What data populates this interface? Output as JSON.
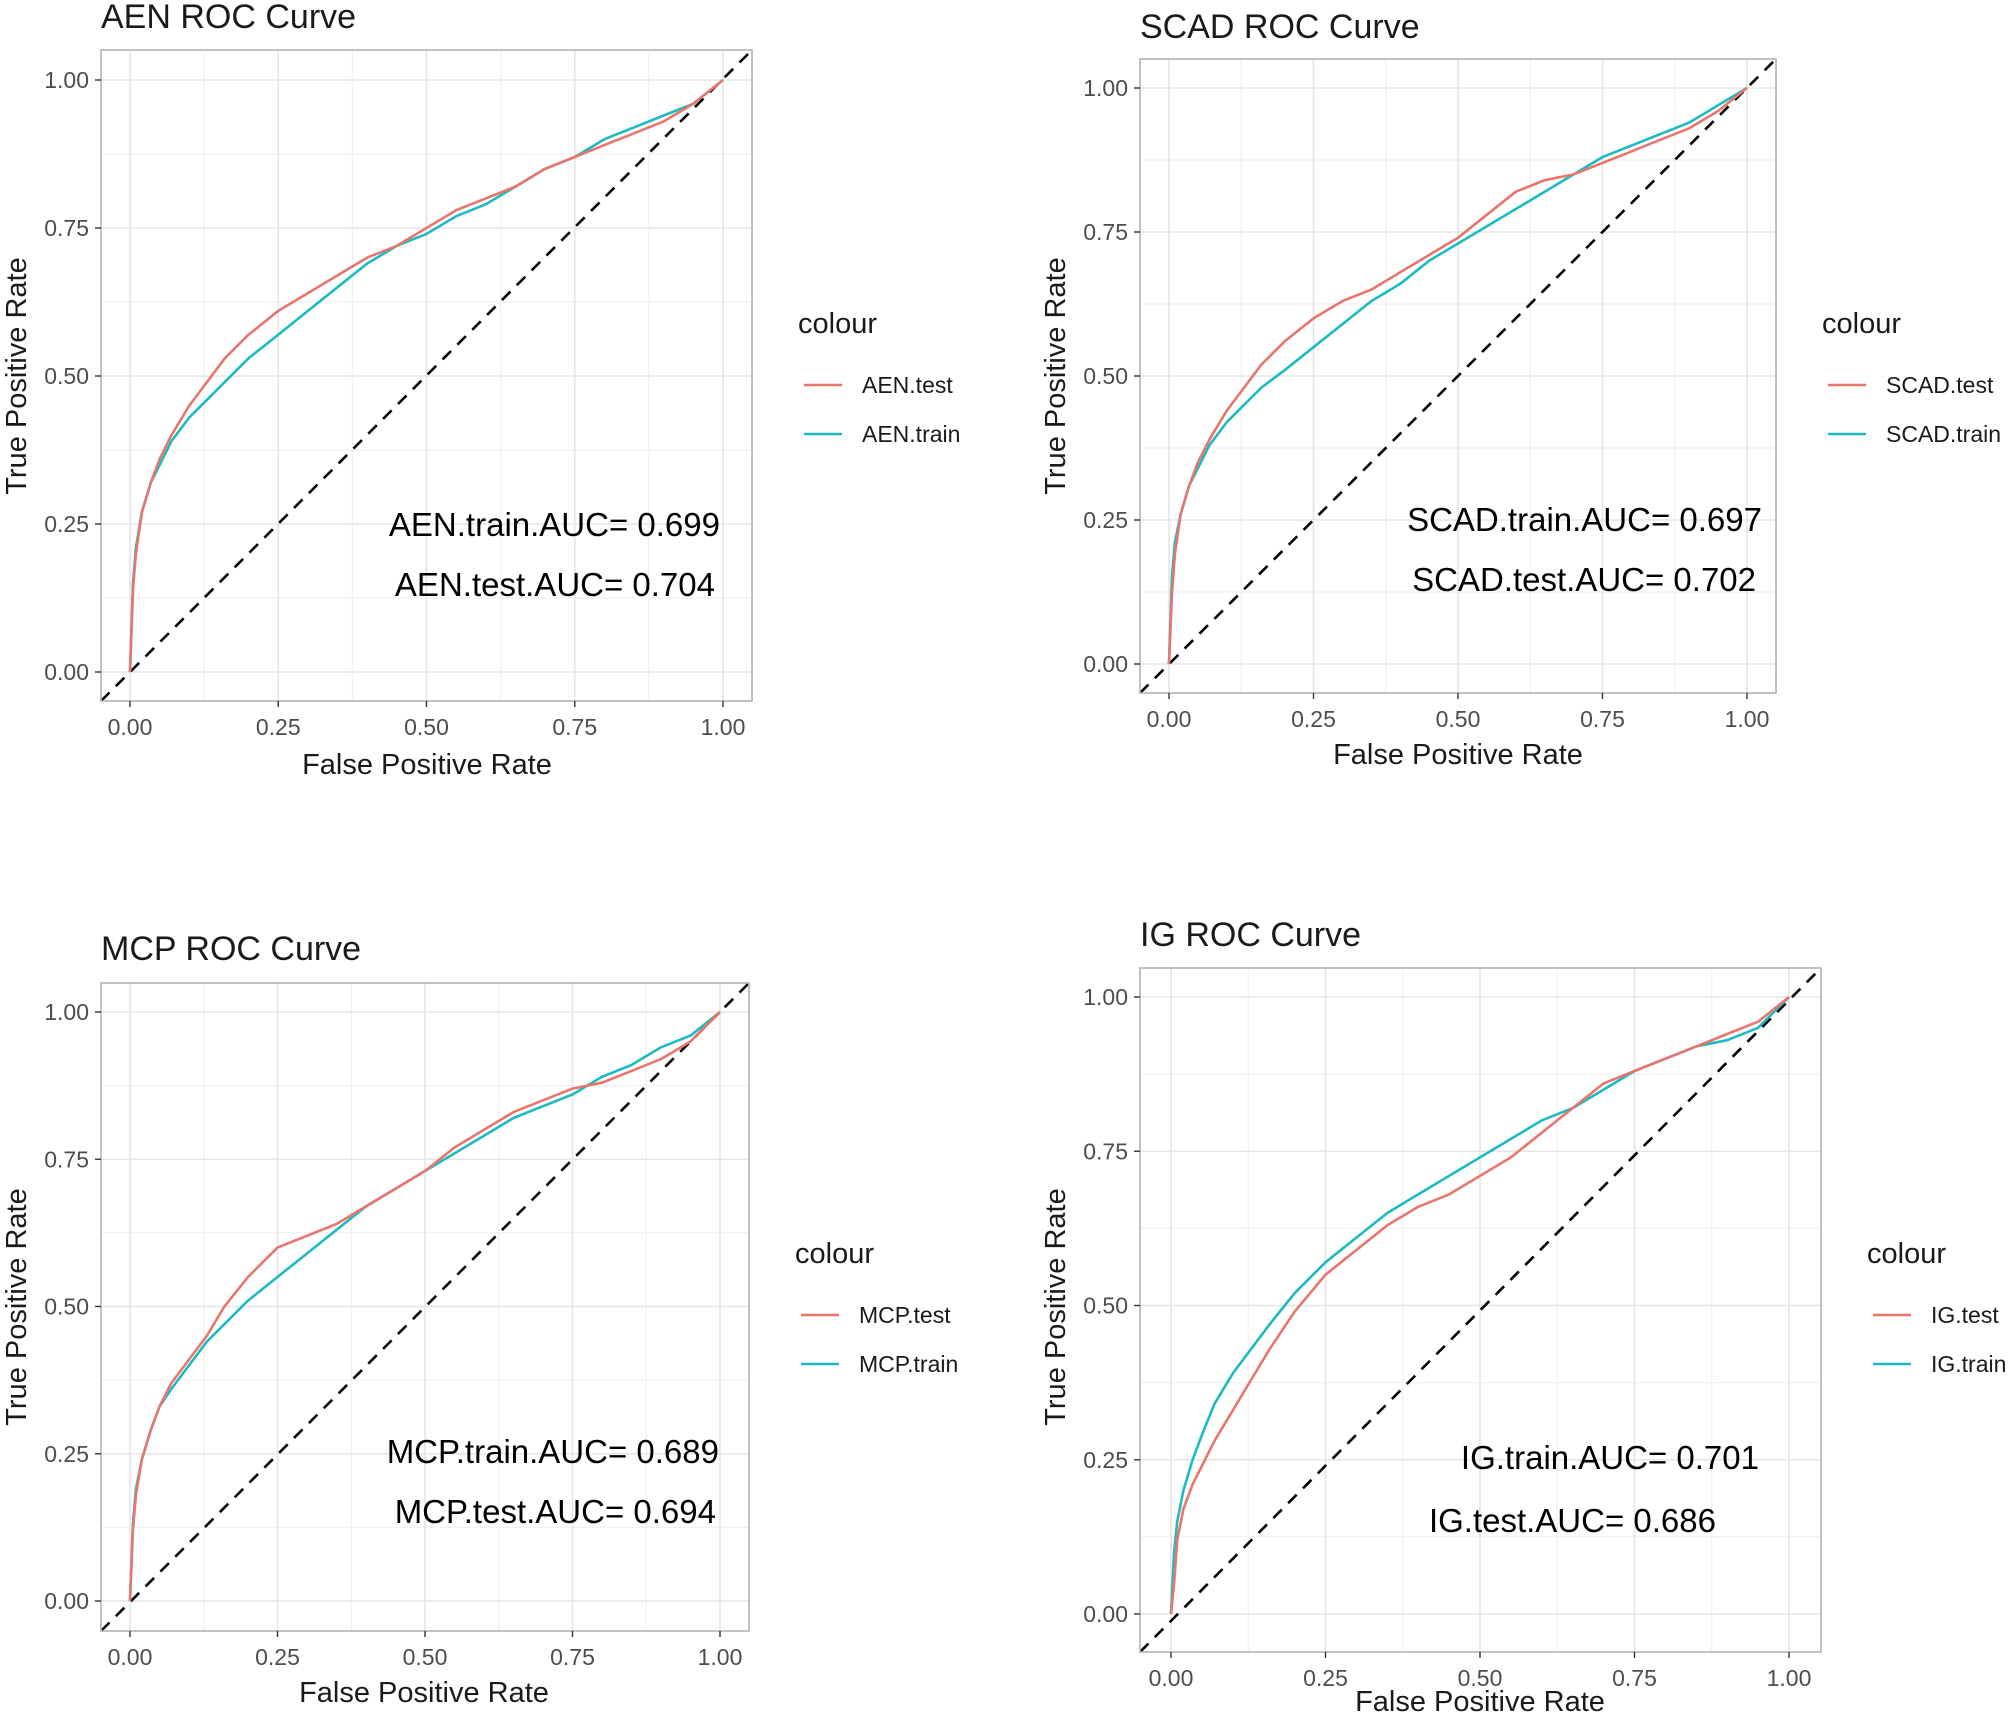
{
  "colors": {
    "test": "#E8766D",
    "train": "#1DBBC1",
    "grid": "#E5E5E5",
    "panel_border": "#B3B3B3",
    "diagonal": "#000000",
    "text": "#1A1A1A",
    "tick_text": "#4D4D4D"
  },
  "chart_data": [
    {
      "type": "line",
      "title": "AEN ROC Curve",
      "xlabel": "False Positive Rate",
      "ylabel": "True Positive Rate",
      "xlim": [
        0,
        1
      ],
      "ylim": [
        0,
        1
      ],
      "xticks": [
        "0.00",
        "0.25",
        "0.50",
        "0.75",
        "1.00"
      ],
      "yticks": [
        "0.00",
        "0.25",
        "0.50",
        "0.75",
        "1.00"
      ],
      "grid": true,
      "legend": {
        "title": "colour",
        "position": "right",
        "entries": [
          "AEN.test",
          "AEN.train"
        ]
      },
      "annotations": [
        "AEN.train.AUC= 0.699",
        "AEN.test.AUC= 0.704"
      ],
      "diagonal": {
        "style": "dashed",
        "from": [
          0,
          0
        ],
        "to": [
          1,
          1
        ]
      },
      "series": [
        {
          "name": "AEN.test",
          "color_key": "test",
          "x": [
            0,
            0.005,
            0.01,
            0.02,
            0.035,
            0.05,
            0.07,
            0.1,
            0.13,
            0.16,
            0.2,
            0.25,
            0.3,
            0.35,
            0.4,
            0.45,
            0.5,
            0.55,
            0.6,
            0.65,
            0.7,
            0.75,
            0.8,
            0.85,
            0.9,
            0.95,
            1.0
          ],
          "y": [
            0,
            0.14,
            0.2,
            0.27,
            0.32,
            0.36,
            0.4,
            0.45,
            0.49,
            0.53,
            0.57,
            0.61,
            0.64,
            0.67,
            0.7,
            0.72,
            0.75,
            0.78,
            0.8,
            0.82,
            0.85,
            0.87,
            0.89,
            0.91,
            0.93,
            0.96,
            1.0
          ]
        },
        {
          "name": "AEN.train",
          "color_key": "train",
          "x": [
            0,
            0.005,
            0.01,
            0.02,
            0.035,
            0.05,
            0.07,
            0.1,
            0.13,
            0.16,
            0.2,
            0.25,
            0.3,
            0.35,
            0.4,
            0.45,
            0.5,
            0.55,
            0.6,
            0.65,
            0.7,
            0.75,
            0.8,
            0.85,
            0.9,
            0.95,
            1.0
          ],
          "y": [
            0,
            0.15,
            0.21,
            0.27,
            0.32,
            0.35,
            0.39,
            0.43,
            0.46,
            0.49,
            0.53,
            0.57,
            0.61,
            0.65,
            0.69,
            0.72,
            0.74,
            0.77,
            0.79,
            0.82,
            0.85,
            0.87,
            0.9,
            0.92,
            0.94,
            0.96,
            1.0
          ]
        }
      ]
    },
    {
      "type": "line",
      "title": "SCAD ROC Curve",
      "xlabel": "False Positive Rate",
      "ylabel": "True Positive Rate",
      "xlim": [
        0,
        1
      ],
      "ylim": [
        0,
        1
      ],
      "xticks": [
        "0.00",
        "0.25",
        "0.50",
        "0.75",
        "1.00"
      ],
      "yticks": [
        "0.00",
        "0.25",
        "0.50",
        "0.75",
        "1.00"
      ],
      "grid": true,
      "legend": {
        "title": "colour",
        "position": "right",
        "entries": [
          "SCAD.test",
          "SCAD.train"
        ]
      },
      "annotations": [
        "SCAD.train.AUC= 0.697",
        "SCAD.test.AUC= 0.702"
      ],
      "diagonal": {
        "style": "dashed",
        "from": [
          0,
          0
        ],
        "to": [
          1,
          1
        ]
      },
      "series": [
        {
          "name": "SCAD.test",
          "color_key": "test",
          "x": [
            0,
            0.005,
            0.01,
            0.02,
            0.035,
            0.05,
            0.07,
            0.1,
            0.13,
            0.16,
            0.2,
            0.25,
            0.3,
            0.35,
            0.4,
            0.45,
            0.5,
            0.55,
            0.6,
            0.65,
            0.7,
            0.75,
            0.8,
            0.85,
            0.9,
            0.95,
            1.0
          ],
          "y": [
            0,
            0.12,
            0.19,
            0.26,
            0.31,
            0.35,
            0.39,
            0.44,
            0.48,
            0.52,
            0.56,
            0.6,
            0.63,
            0.65,
            0.68,
            0.71,
            0.74,
            0.78,
            0.82,
            0.84,
            0.85,
            0.87,
            0.89,
            0.91,
            0.93,
            0.96,
            1.0
          ]
        },
        {
          "name": "SCAD.train",
          "color_key": "train",
          "x": [
            0,
            0.005,
            0.01,
            0.02,
            0.035,
            0.05,
            0.07,
            0.1,
            0.13,
            0.16,
            0.2,
            0.25,
            0.3,
            0.35,
            0.4,
            0.45,
            0.5,
            0.55,
            0.6,
            0.65,
            0.7,
            0.75,
            0.8,
            0.85,
            0.9,
            0.95,
            1.0
          ],
          "y": [
            0,
            0.15,
            0.21,
            0.26,
            0.31,
            0.34,
            0.38,
            0.42,
            0.45,
            0.48,
            0.51,
            0.55,
            0.59,
            0.63,
            0.66,
            0.7,
            0.73,
            0.76,
            0.79,
            0.82,
            0.85,
            0.88,
            0.9,
            0.92,
            0.94,
            0.97,
            1.0
          ]
        }
      ]
    },
    {
      "type": "line",
      "title": "MCP ROC Curve",
      "xlabel": "False Positive Rate",
      "ylabel": "True Positive Rate",
      "xlim": [
        0,
        1
      ],
      "ylim": [
        0,
        1
      ],
      "xticks": [
        "0.00",
        "0.25",
        "0.50",
        "0.75",
        "1.00"
      ],
      "yticks": [
        "0.00",
        "0.25",
        "0.50",
        "0.75",
        "1.00"
      ],
      "grid": true,
      "legend": {
        "title": "colour",
        "position": "right",
        "entries": [
          "MCP.test",
          "MCP.train"
        ]
      },
      "annotations": [
        "MCP.train.AUC= 0.689",
        "MCP.test.AUC= 0.694"
      ],
      "diagonal": {
        "style": "dashed",
        "from": [
          0,
          0
        ],
        "to": [
          1,
          1
        ]
      },
      "series": [
        {
          "name": "MCP.test",
          "color_key": "test",
          "x": [
            0,
            0.005,
            0.01,
            0.02,
            0.035,
            0.05,
            0.07,
            0.1,
            0.13,
            0.16,
            0.2,
            0.25,
            0.3,
            0.35,
            0.4,
            0.45,
            0.5,
            0.55,
            0.6,
            0.65,
            0.7,
            0.75,
            0.8,
            0.85,
            0.9,
            0.95,
            1.0
          ],
          "y": [
            0,
            0.12,
            0.18,
            0.24,
            0.29,
            0.33,
            0.37,
            0.41,
            0.45,
            0.5,
            0.55,
            0.6,
            0.62,
            0.64,
            0.67,
            0.7,
            0.73,
            0.77,
            0.8,
            0.83,
            0.85,
            0.87,
            0.88,
            0.9,
            0.92,
            0.95,
            1.0
          ]
        },
        {
          "name": "MCP.train",
          "color_key": "train",
          "x": [
            0,
            0.005,
            0.01,
            0.02,
            0.035,
            0.05,
            0.07,
            0.1,
            0.13,
            0.16,
            0.2,
            0.25,
            0.3,
            0.35,
            0.4,
            0.45,
            0.5,
            0.55,
            0.6,
            0.65,
            0.7,
            0.75,
            0.8,
            0.85,
            0.9,
            0.95,
            1.0
          ],
          "y": [
            0,
            0.13,
            0.19,
            0.24,
            0.29,
            0.33,
            0.36,
            0.4,
            0.44,
            0.47,
            0.51,
            0.55,
            0.59,
            0.63,
            0.67,
            0.7,
            0.73,
            0.76,
            0.79,
            0.82,
            0.84,
            0.86,
            0.89,
            0.91,
            0.94,
            0.96,
            1.0
          ]
        }
      ]
    },
    {
      "type": "line",
      "title": "IG ROC Curve",
      "xlabel": "False Positive Rate",
      "ylabel": "True Positive Rate",
      "xlim": [
        0,
        1
      ],
      "ylim": [
        0,
        1
      ],
      "xticks": [
        "0.00",
        "0.25",
        "0.50",
        "0.75",
        "1.00"
      ],
      "yticks": [
        "0.00",
        "0.25",
        "0.50",
        "0.75",
        "1.00"
      ],
      "grid": true,
      "legend": {
        "title": "colour",
        "position": "right",
        "entries": [
          "IG.test",
          "IG.train"
        ]
      },
      "annotations": [
        "IG.train.AUC= 0.701",
        "IG.test.AUC= 0.686"
      ],
      "diagonal": {
        "style": "dashed",
        "from": [
          0,
          0
        ],
        "to": [
          1,
          1
        ]
      },
      "series": [
        {
          "name": "IG.test",
          "color_key": "test",
          "x": [
            0,
            0.005,
            0.01,
            0.02,
            0.035,
            0.05,
            0.07,
            0.1,
            0.13,
            0.16,
            0.2,
            0.25,
            0.3,
            0.35,
            0.4,
            0.45,
            0.5,
            0.55,
            0.6,
            0.65,
            0.7,
            0.75,
            0.8,
            0.85,
            0.9,
            0.95,
            1.0
          ],
          "y": [
            0,
            0.05,
            0.12,
            0.17,
            0.21,
            0.24,
            0.28,
            0.33,
            0.38,
            0.43,
            0.49,
            0.55,
            0.59,
            0.63,
            0.66,
            0.68,
            0.71,
            0.74,
            0.78,
            0.82,
            0.86,
            0.88,
            0.9,
            0.92,
            0.94,
            0.96,
            1.0
          ]
        },
        {
          "name": "IG.train",
          "color_key": "train",
          "x": [
            0,
            0.005,
            0.01,
            0.02,
            0.035,
            0.05,
            0.07,
            0.1,
            0.13,
            0.16,
            0.2,
            0.25,
            0.3,
            0.35,
            0.4,
            0.45,
            0.5,
            0.55,
            0.6,
            0.65,
            0.7,
            0.75,
            0.8,
            0.85,
            0.9,
            0.95,
            1.0
          ],
          "y": [
            0,
            0.1,
            0.15,
            0.2,
            0.25,
            0.29,
            0.34,
            0.39,
            0.43,
            0.47,
            0.52,
            0.57,
            0.61,
            0.65,
            0.68,
            0.71,
            0.74,
            0.77,
            0.8,
            0.82,
            0.85,
            0.88,
            0.9,
            0.92,
            0.93,
            0.95,
            1.0
          ]
        }
      ]
    }
  ]
}
